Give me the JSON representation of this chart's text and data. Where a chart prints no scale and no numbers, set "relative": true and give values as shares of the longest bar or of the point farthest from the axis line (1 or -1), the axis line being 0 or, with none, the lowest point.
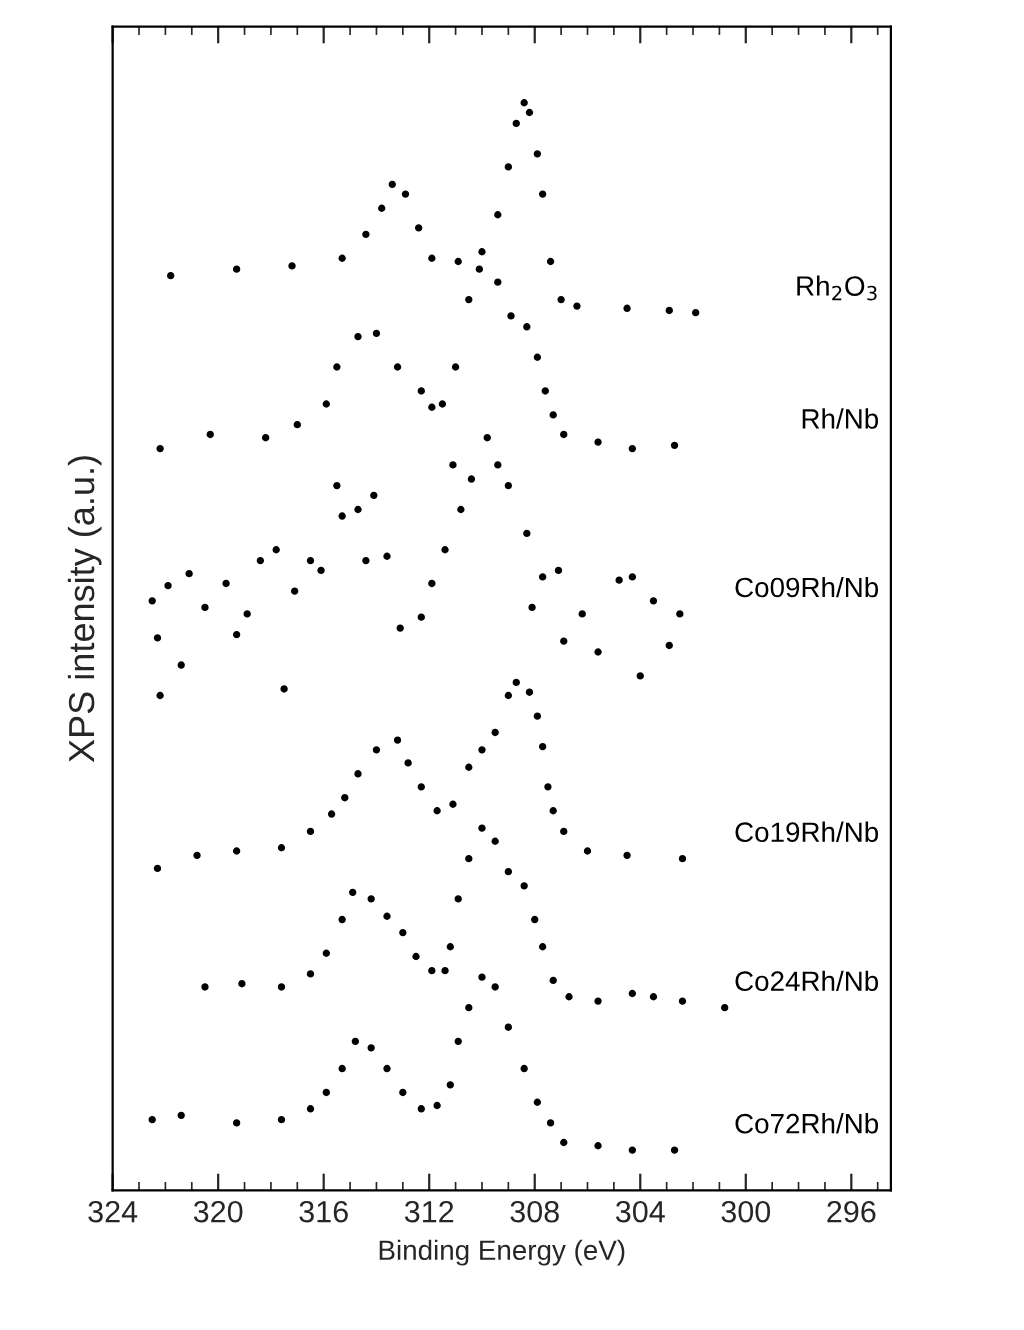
{
  "chart_data": {
    "type": "scatter",
    "relative": true,
    "marker": "circle",
    "xlabel": "Binding Energy (eV)",
    "ylabel": "XPS intensity (a.u.)",
    "xlim": [
      324,
      294.5
    ],
    "xticks": [
      324,
      320,
      316,
      312,
      308,
      304,
      300,
      296
    ],
    "grid": false,
    "legend": false,
    "series": [
      {
        "name": "Rh$_{2}$O$_{3}$",
        "color": "#000000",
        "x": [
          321.8,
          319.3,
          317.2,
          315.3,
          314.4,
          313.8,
          313.4,
          312.9,
          312.4,
          311.9,
          310.9,
          310.0,
          309.4,
          309.0,
          308.7,
          308.4,
          308.2,
          307.9,
          307.7,
          307.4,
          307.0,
          306.4,
          304.5,
          302.9,
          301.9
        ],
        "values": [
          0.841,
          0.847,
          0.85,
          0.857,
          0.879,
          0.903,
          0.925,
          0.916,
          0.885,
          0.857,
          0.854,
          0.863,
          0.897,
          0.941,
          0.981,
          1,
          0.991,
          0.953,
          0.916,
          0.854,
          0.819,
          0.813,
          0.811,
          0.809,
          0.807
        ]
      },
      {
        "name": "Rh/Nb",
        "color": "#000000",
        "x": [
          322.2,
          320.3,
          318.2,
          317.0,
          315.9,
          315.5,
          314.7,
          314.0,
          313.2,
          312.3,
          311.9,
          311.5,
          311.0,
          310.5,
          310.1,
          309.4,
          308.9,
          308.3,
          307.9,
          307.6,
          307.3,
          306.9,
          305.6,
          304.3,
          302.7
        ],
        "values": [
          0.682,
          0.695,
          0.692,
          0.704,
          0.723,
          0.757,
          0.785,
          0.788,
          0.757,
          0.735,
          0.72,
          0.723,
          0.757,
          0.819,
          0.847,
          0.835,
          0.804,
          0.794,
          0.766,
          0.735,
          0.713,
          0.695,
          0.688,
          0.682,
          0.685
        ]
      },
      {
        "name": "Co09Rh/Nb",
        "color": "#000000",
        "x": [
          322.5,
          322.3,
          322.2,
          321.9,
          321.4,
          321.1,
          320.5,
          319.7,
          319.3,
          318.9,
          318.4,
          317.8,
          317.5,
          317.1,
          316.5,
          316.1,
          315.5,
          315.3,
          314.7,
          314.4,
          314.1,
          313.6,
          313.1,
          312.3,
          311.9,
          311.4,
          311.1,
          310.8,
          310.4,
          309.8,
          309.4,
          309.0,
          308.3,
          308.1,
          307.7,
          307.1,
          306.9,
          306.2,
          305.6,
          304.8,
          304.3,
          304.0,
          303.5,
          302.9,
          302.5
        ],
        "values": [
          0.542,
          0.508,
          0.455,
          0.556,
          0.483,
          0.567,
          0.536,
          0.558,
          0.511,
          0.53,
          0.579,
          0.589,
          0.461,
          0.551,
          0.579,
          0.57,
          0.648,
          0.62,
          0.626,
          0.579,
          0.639,
          0.583,
          0.517,
          0.527,
          0.558,
          0.589,
          0.667,
          0.626,
          0.654,
          0.692,
          0.667,
          0.648,
          0.604,
          0.536,
          0.564,
          0.57,
          0.505,
          0.53,
          0.495,
          0.561,
          0.564,
          0.473,
          0.542,
          0.501,
          0.53
        ]
      },
      {
        "name": "Co19Rh/Nb",
        "color": "#000000",
        "x": [
          322.3,
          320.8,
          319.3,
          317.6,
          316.5,
          315.7,
          315.2,
          314.7,
          314.0,
          313.2,
          312.8,
          312.3,
          311.7,
          311.1,
          310.5,
          310.0,
          309.5,
          309.0,
          308.7,
          308.2,
          307.9,
          307.7,
          307.5,
          307.3,
          306.9,
          306.0,
          304.5,
          302.4
        ],
        "values": [
          0.296,
          0.308,
          0.312,
          0.315,
          0.33,
          0.346,
          0.361,
          0.383,
          0.405,
          0.414,
          0.393,
          0.371,
          0.349,
          0.355,
          0.389,
          0.405,
          0.421,
          0.455,
          0.467,
          0.458,
          0.436,
          0.408,
          0.371,
          0.349,
          0.33,
          0.312,
          0.308,
          0.305
        ]
      },
      {
        "name": "Co24Rh/Nb",
        "color": "#000000",
        "x": [
          320.5,
          319.1,
          317.6,
          316.5,
          315.9,
          315.3,
          314.9,
          314.2,
          313.6,
          313.0,
          312.5,
          311.9,
          311.4,
          311.2,
          310.9,
          310.5,
          310.0,
          309.5,
          309.0,
          308.4,
          308.0,
          307.7,
          307.3,
          306.7,
          305.6,
          304.3,
          303.5,
          302.4,
          300.8
        ],
        "values": [
          0.187,
          0.19,
          0.187,
          0.199,
          0.218,
          0.249,
          0.274,
          0.268,
          0.252,
          0.237,
          0.215,
          0.202,
          0.202,
          0.224,
          0.268,
          0.305,
          0.333,
          0.321,
          0.293,
          0.28,
          0.249,
          0.224,
          0.193,
          0.178,
          0.174,
          0.181,
          0.178,
          0.174,
          0.168
        ]
      },
      {
        "name": "Co72Rh/Nb",
        "color": "#000000",
        "x": [
          322.5,
          321.4,
          319.3,
          317.6,
          316.5,
          315.9,
          315.3,
          314.8,
          314.2,
          313.6,
          313.0,
          312.3,
          311.7,
          311.2,
          310.9,
          310.5,
          310.0,
          309.5,
          309.0,
          308.4,
          307.9,
          307.4,
          306.9,
          305.6,
          304.3,
          302.7
        ],
        "values": [
          0.065,
          0.069,
          0.062,
          0.065,
          0.075,
          0.09,
          0.112,
          0.137,
          0.131,
          0.112,
          0.09,
          0.075,
          0.078,
          0.097,
          0.137,
          0.168,
          0.196,
          0.187,
          0.15,
          0.112,
          0.081,
          0.062,
          0.044,
          0.041,
          0.037,
          0.037
        ]
      }
    ]
  }
}
